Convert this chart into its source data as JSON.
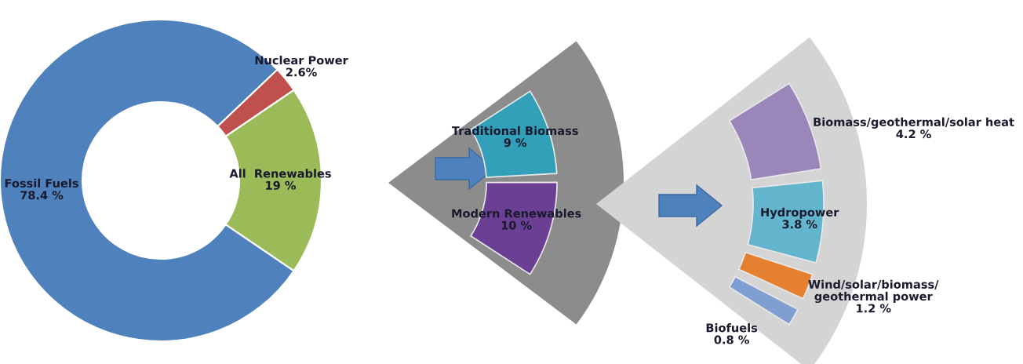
{
  "chart_data": [
    {
      "type": "donut",
      "categories": [
        "Fossil Fuels",
        "Nuclear Power",
        "All  Renewables"
      ],
      "values": [
        78.4,
        2.6,
        19
      ],
      "value_labels": [
        "78.4 %",
        "2.6%",
        "19 %"
      ],
      "colors": [
        "#4f81bd",
        "#c0504d",
        "#9bbb59"
      ]
    },
    {
      "type": "other",
      "categories": [
        "Traditional Biomass",
        "Modern Renewables"
      ],
      "values": [
        9,
        10
      ],
      "value_labels": [
        "9 %",
        "10 %"
      ],
      "colors": [
        "#31a0b8",
        "#6b3f93"
      ]
    },
    {
      "type": "other",
      "categories": [
        "Biomass/geothermal/solar heat",
        "Hydropower",
        "Wind/solar/biomass/\ngeothermal power",
        "Biofuels"
      ],
      "values": [
        4.2,
        3.8,
        1.2,
        0.8
      ],
      "value_labels": [
        "4.2 %",
        "3.8 %",
        "1.2 %",
        "0.8 %"
      ],
      "colors": [
        "#9b86b9",
        "#62b5cd",
        "#e4802f",
        "#7f9fd3"
      ]
    }
  ]
}
